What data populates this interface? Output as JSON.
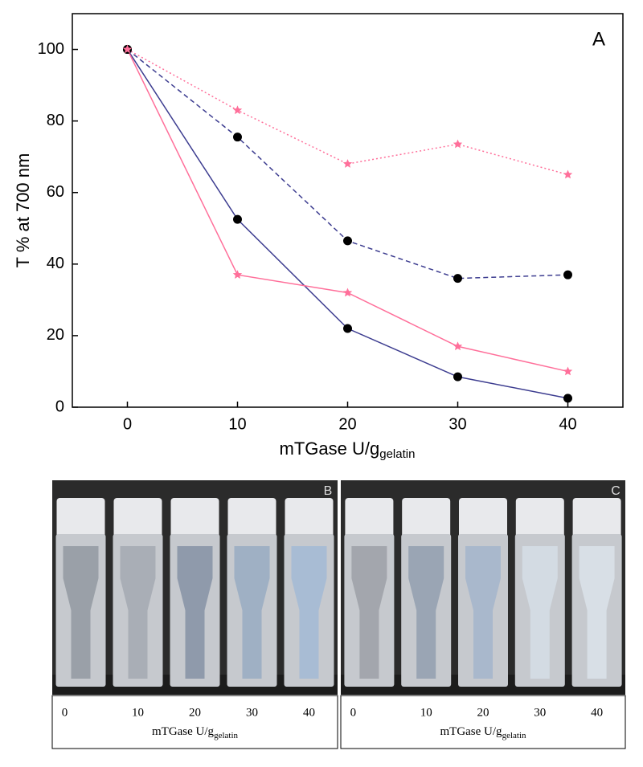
{
  "chart_data": {
    "type": "line",
    "panel_label": "A",
    "x_label": "mTGase U/g",
    "x_label_sub": "gelatin",
    "y_label": "T % at 700 nm",
    "x": [
      0,
      10,
      20,
      30,
      40
    ],
    "series": [
      {
        "color": "#ff6f9a",
        "linestyle": "dotted",
        "marker": "star",
        "values": [
          100,
          83,
          68,
          73.5,
          65
        ]
      },
      {
        "color": "#3d3d90",
        "linestyle": "dashed",
        "marker": "circle",
        "values": [
          100,
          75.5,
          46.5,
          36,
          37
        ]
      },
      {
        "color": "#3d3d90",
        "linestyle": "solid",
        "marker": "circle",
        "values": [
          100,
          52.5,
          22,
          8.5,
          2.5
        ]
      },
      {
        "color": "#ff6f9a",
        "linestyle": "solid",
        "marker": "star",
        "values": [
          100,
          37,
          32,
          17,
          10
        ]
      }
    ],
    "xlim": [
      -5,
      45
    ],
    "ylim": [
      0,
      110
    ],
    "xticks": [
      0,
      10,
      20,
      30,
      40
    ],
    "yticks": [
      0,
      20,
      40,
      60,
      80,
      100
    ]
  },
  "photos": [
    {
      "label": "B",
      "sample_labels": [
        "0",
        "10",
        "20",
        "30",
        "40"
      ],
      "caption": "mTGase U/g",
      "caption_sub": "gelatin"
    },
    {
      "label": "C",
      "sample_labels": [
        "0",
        "10",
        "20",
        "30",
        "40"
      ],
      "caption": "mTGase U/g",
      "caption_sub": "gelatin"
    }
  ]
}
